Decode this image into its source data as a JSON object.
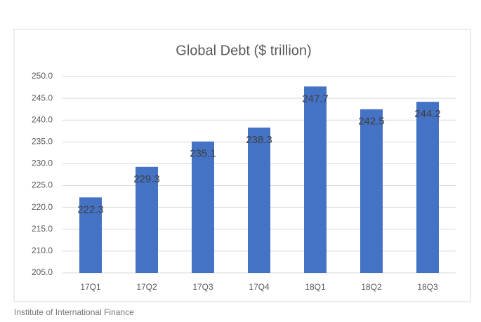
{
  "chart_data": {
    "type": "bar",
    "title": "Global Debt ($ trillion)",
    "categories": [
      "17Q1",
      "17Q2",
      "17Q3",
      "17Q4",
      "18Q1",
      "18Q2",
      "18Q3"
    ],
    "values": [
      222.3,
      229.3,
      235.1,
      238.3,
      247.7,
      242.5,
      244.2
    ],
    "color": "#4472c4",
    "ylim": [
      205,
      250
    ],
    "yticks": [
      {
        "value": 205,
        "label": "205.0"
      },
      {
        "value": 210,
        "label": "210.0"
      },
      {
        "value": 215,
        "label": "215.0"
      },
      {
        "value": 220,
        "label": "220.0"
      },
      {
        "value": 225,
        "label": "225.0"
      },
      {
        "value": 230,
        "label": "230.0"
      },
      {
        "value": 235,
        "label": "235.0"
      },
      {
        "value": 240,
        "label": "240.0"
      },
      {
        "value": 245,
        "label": "245.0"
      },
      {
        "value": 250,
        "label": "250.0"
      }
    ],
    "grid": true,
    "source": "Institute of International Finance"
  }
}
